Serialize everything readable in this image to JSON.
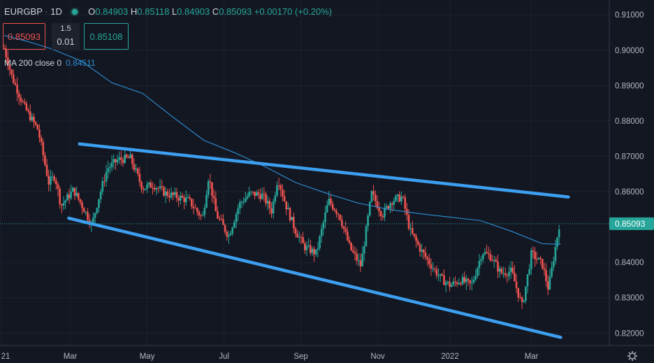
{
  "header": {
    "symbol": "EURGBP",
    "interval": "1D",
    "open_label": "O",
    "open": "0.84903",
    "high_label": "H",
    "high": "0.85118",
    "low_label": "L",
    "low": "0.84903",
    "close_label": "C",
    "close": "0.85093",
    "change": "+0.00170 (+0.20%)"
  },
  "trade": {
    "sell_price": "0.85093",
    "spread_top": "1.5",
    "spread_bottom": "0.01",
    "buy_price": "0.85108"
  },
  "indicator": {
    "label": "MA 200 close 0",
    "value": "0.84511"
  },
  "chart_data": {
    "type": "candlestick",
    "y_ticks": [
      "0.91000",
      "0.90000",
      "0.89000",
      "0.88000",
      "0.87000",
      "0.86000",
      "0.84000",
      "0.83000",
      "0.82000"
    ],
    "x_ticks": [
      "21",
      "Mar",
      "May",
      "Jul",
      "Sep",
      "Nov",
      "2022",
      "Mar"
    ],
    "ylim": [
      0.8165,
      0.9142
    ],
    "last_price_label": "0.85093",
    "colors": {
      "up": "#26a69a",
      "down": "#ef5350",
      "ma": "#2e8fd6",
      "trendline": "#3d9ff0"
    },
    "price_path": [
      [
        0,
        0.9005
      ],
      [
        0.5,
        0.8925
      ],
      [
        1.3,
        0.884
      ],
      [
        2.2,
        0.8775
      ],
      [
        2.9,
        0.8625
      ],
      [
        3.3,
        0.8645
      ],
      [
        3.7,
        0.856
      ],
      [
        4.5,
        0.8605
      ],
      [
        5.2,
        0.855
      ],
      [
        5.7,
        0.8505
      ],
      [
        6.1,
        0.8575
      ],
      [
        6.7,
        0.8665
      ],
      [
        7.4,
        0.869
      ],
      [
        8.2,
        0.8695
      ],
      [
        9.0,
        0.861
      ],
      [
        9.7,
        0.862
      ],
      [
        10.5,
        0.8595
      ],
      [
        11.3,
        0.8585
      ],
      [
        12.0,
        0.8575
      ],
      [
        12.9,
        0.8525
      ],
      [
        13.3,
        0.8645
      ],
      [
        13.8,
        0.8535
      ],
      [
        14.6,
        0.8475
      ],
      [
        15.3,
        0.8565
      ],
      [
        16.0,
        0.8595
      ],
      [
        16.8,
        0.859
      ],
      [
        17.4,
        0.8545
      ],
      [
        17.8,
        0.864
      ],
      [
        18.3,
        0.8565
      ],
      [
        18.9,
        0.8495
      ],
      [
        19.5,
        0.8445
      ],
      [
        20.3,
        0.8425
      ],
      [
        21.1,
        0.8575
      ],
      [
        21.8,
        0.8535
      ],
      [
        22.5,
        0.844
      ],
      [
        23.2,
        0.839
      ],
      [
        23.9,
        0.8595
      ],
      [
        24.6,
        0.8535
      ],
      [
        25.2,
        0.8575
      ],
      [
        25.9,
        0.8585
      ],
      [
        26.4,
        0.849
      ],
      [
        27.1,
        0.8435
      ],
      [
        27.8,
        0.839
      ],
      [
        28.4,
        0.8355
      ],
      [
        29.0,
        0.8335
      ],
      [
        29.7,
        0.835
      ],
      [
        30.4,
        0.8335
      ],
      [
        31.1,
        0.843
      ],
      [
        31.7,
        0.8415
      ],
      [
        32.3,
        0.837
      ],
      [
        33.0,
        0.8375
      ],
      [
        33.7,
        0.8275
      ],
      [
        34.3,
        0.8425
      ],
      [
        35.0,
        0.8395
      ],
      [
        35.4,
        0.8325
      ],
      [
        36.1,
        0.8505
      ]
    ],
    "ma_path": [
      [
        0,
        0.9042
      ],
      [
        1.5,
        0.9025
      ],
      [
        3.0,
        0.9005
      ],
      [
        5.0,
        0.897
      ],
      [
        7.0,
        0.8908
      ],
      [
        9.0,
        0.8878
      ],
      [
        11.0,
        0.881
      ],
      [
        13.0,
        0.8745
      ],
      [
        15.0,
        0.871
      ],
      [
        17.0,
        0.867
      ],
      [
        19.0,
        0.8625
      ],
      [
        21.0,
        0.8595
      ],
      [
        23.0,
        0.8568
      ],
      [
        25.0,
        0.855
      ],
      [
        27.0,
        0.8538
      ],
      [
        29.0,
        0.8528
      ],
      [
        31.0,
        0.8518
      ],
      [
        33.0,
        0.8488
      ],
      [
        35.0,
        0.8453
      ],
      [
        36.2,
        0.8451
      ]
    ],
    "trendlines": [
      {
        "name": "upper",
        "from": [
          4.9,
          0.8735
        ],
        "to": [
          36.7,
          0.8585
        ]
      },
      {
        "name": "lower",
        "from": [
          4.2,
          0.8525
        ],
        "to": [
          36.2,
          0.8188
        ]
      }
    ]
  }
}
